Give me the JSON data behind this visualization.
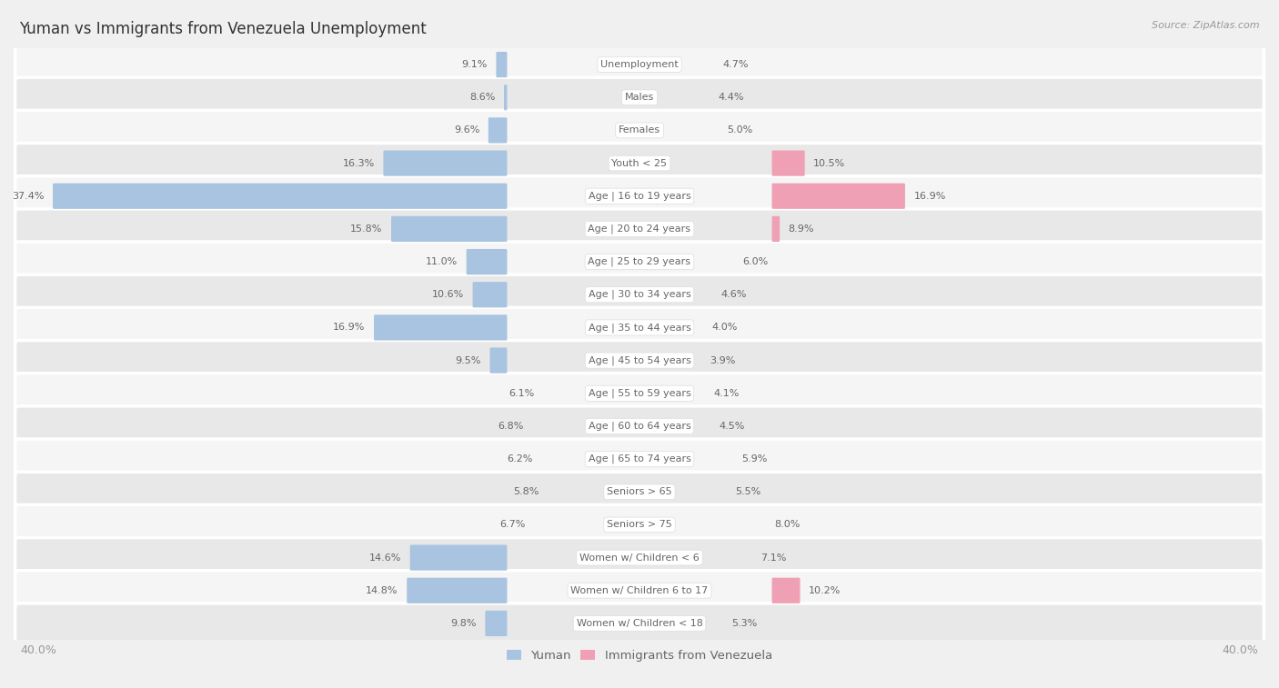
{
  "title": "Yuman vs Immigrants from Venezuela Unemployment",
  "source": "Source: ZipAtlas.com",
  "categories": [
    "Unemployment",
    "Males",
    "Females",
    "Youth < 25",
    "Age | 16 to 19 years",
    "Age | 20 to 24 years",
    "Age | 25 to 29 years",
    "Age | 30 to 34 years",
    "Age | 35 to 44 years",
    "Age | 45 to 54 years",
    "Age | 55 to 59 years",
    "Age | 60 to 64 years",
    "Age | 65 to 74 years",
    "Seniors > 65",
    "Seniors > 75",
    "Women w/ Children < 6",
    "Women w/ Children 6 to 17",
    "Women w/ Children < 18"
  ],
  "left_values": [
    9.1,
    8.6,
    9.6,
    16.3,
    37.4,
    15.8,
    11.0,
    10.6,
    16.9,
    9.5,
    6.1,
    6.8,
    6.2,
    5.8,
    6.7,
    14.6,
    14.8,
    9.8
  ],
  "right_values": [
    4.7,
    4.4,
    5.0,
    10.5,
    16.9,
    8.9,
    6.0,
    4.6,
    4.0,
    3.9,
    4.1,
    4.5,
    5.9,
    5.5,
    8.0,
    7.1,
    10.2,
    5.3
  ],
  "left_color": "#a8c4e0",
  "right_color": "#f0a0b4",
  "left_label": "Yuman",
  "right_label": "Immigrants from Venezuela",
  "axis_max": 40.0,
  "bg_color": "#f0f0f0",
  "row_bg_even": "#f5f5f5",
  "row_bg_odd": "#e8e8e8",
  "label_text_color": "#666666",
  "value_text_color": "#666666",
  "title_color": "#333333",
  "source_color": "#999999",
  "axis_label_color": "#999999"
}
